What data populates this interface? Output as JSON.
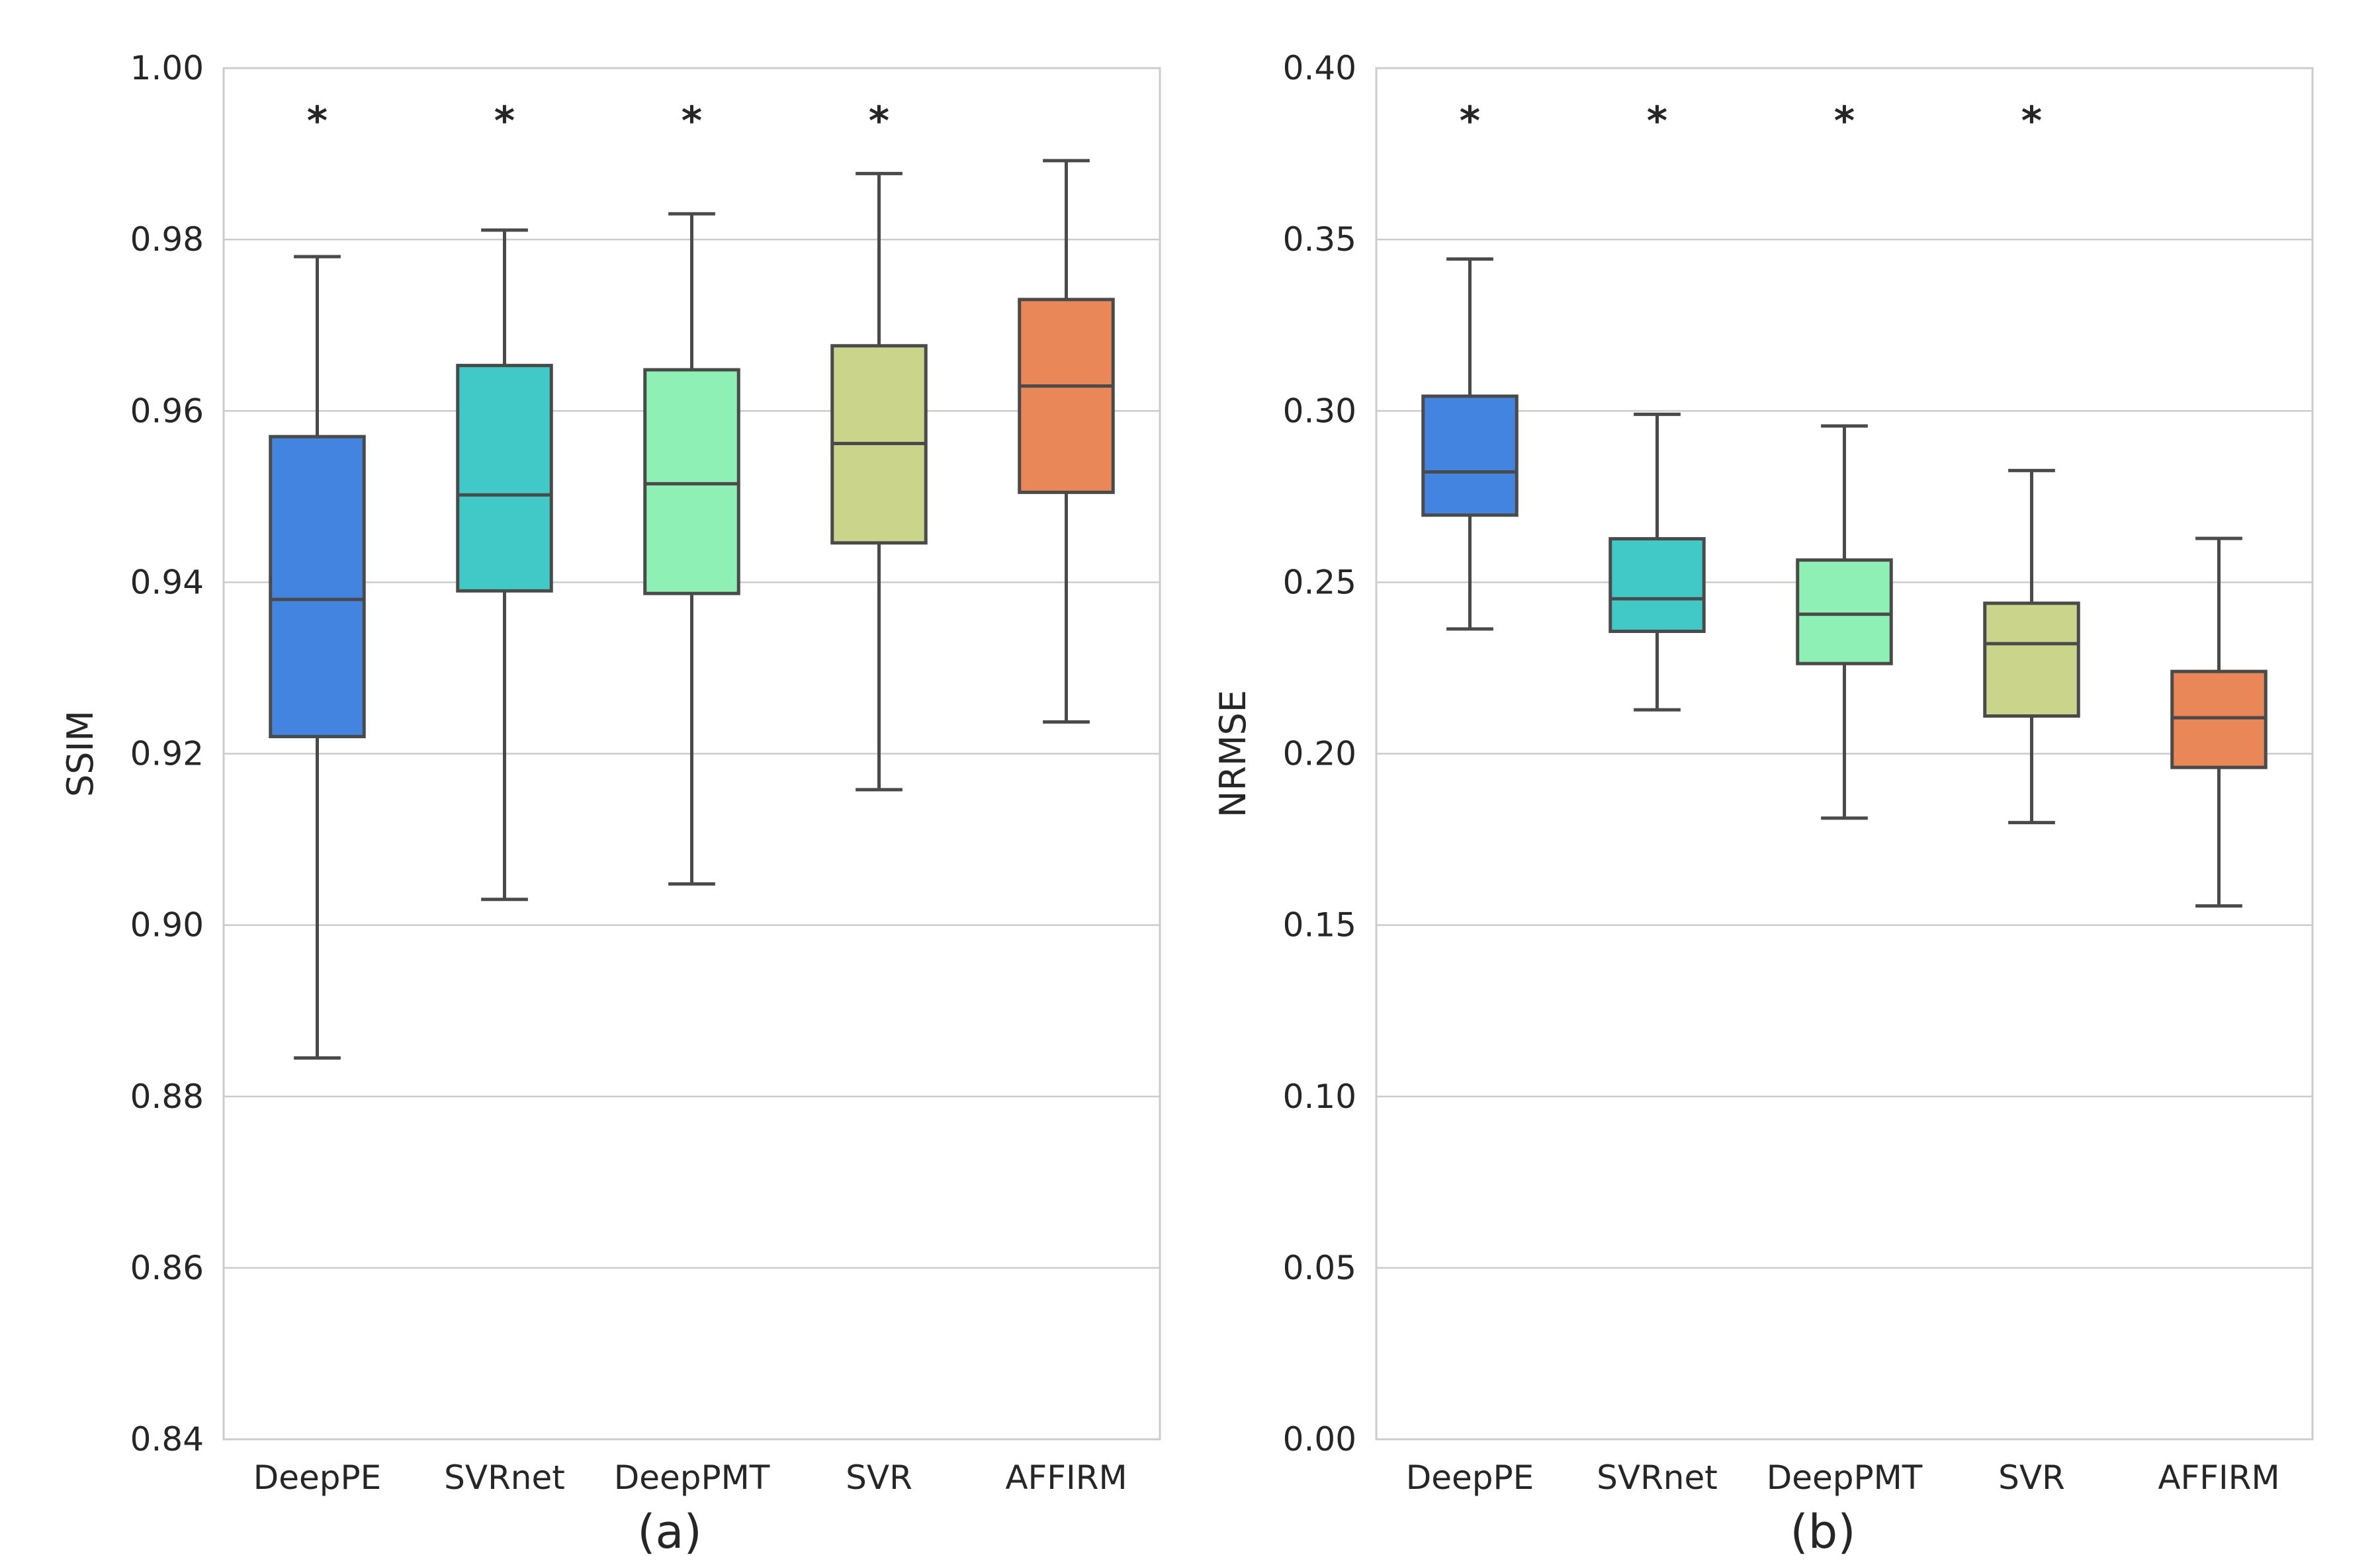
{
  "chart_data": [
    {
      "type": "box",
      "panel_label": "(a)",
      "ylabel": "SSIM",
      "xlabel": "",
      "ylim": [
        0.84,
        1.0
      ],
      "yticks": [
        "0.84",
        "0.86",
        "0.88",
        "0.90",
        "0.92",
        "0.94",
        "0.96",
        "0.98",
        "1.00"
      ],
      "ytick_values": [
        0.84,
        0.86,
        0.88,
        0.9,
        0.92,
        0.94,
        0.96,
        0.98,
        1.0
      ],
      "grid": true,
      "categories": [
        "DeepPE",
        "SVRnet",
        "DeepPMT",
        "SVR",
        "AFFIRM"
      ],
      "boxes": [
        {
          "name": "DeepPE",
          "whisker_low": 0.8845,
          "q1": 0.922,
          "median": 0.938,
          "q3": 0.957,
          "whisker_high": 0.978,
          "marker": "*",
          "color": "#4384e0"
        },
        {
          "name": "SVRnet",
          "whisker_low": 0.903,
          "q1": 0.939,
          "median": 0.9502,
          "q3": 0.9653,
          "whisker_high": 0.9811,
          "marker": "*",
          "color": "#40c9c6"
        },
        {
          "name": "DeepPMT",
          "whisker_low": 0.9048,
          "q1": 0.9387,
          "median": 0.9515,
          "q3": 0.9648,
          "whisker_high": 0.983,
          "marker": "*",
          "color": "#8ef0b4"
        },
        {
          "name": "SVR",
          "whisker_low": 0.9158,
          "q1": 0.9446,
          "median": 0.9562,
          "q3": 0.9676,
          "whisker_high": 0.9877,
          "marker": "*",
          "color": "#cbd48b"
        },
        {
          "name": "AFFIRM",
          "whisker_low": 0.9237,
          "q1": 0.9505,
          "median": 0.9629,
          "q3": 0.973,
          "whisker_high": 0.9892,
          "marker": "",
          "color": "#e98758"
        }
      ]
    },
    {
      "type": "box",
      "panel_label": "(b)",
      "ylabel": "NRMSE",
      "xlabel": "",
      "ylim": [
        0.0,
        0.4
      ],
      "yticks": [
        "0.00",
        "0.05",
        "0.10",
        "0.15",
        "0.20",
        "0.25",
        "0.30",
        "0.35",
        "0.40"
      ],
      "ytick_values": [
        0.0,
        0.05,
        0.1,
        0.15,
        0.2,
        0.25,
        0.3,
        0.35,
        0.4
      ],
      "grid": true,
      "categories": [
        "DeepPE",
        "SVRnet",
        "DeepPMT",
        "SVR",
        "AFFIRM"
      ],
      "boxes": [
        {
          "name": "DeepPE",
          "whisker_low": 0.2364,
          "q1": 0.2696,
          "median": 0.2822,
          "q3": 0.3043,
          "whisker_high": 0.3443,
          "marker": "*",
          "color": "#4384e0"
        },
        {
          "name": "SVRnet",
          "whisker_low": 0.2128,
          "q1": 0.2357,
          "median": 0.2452,
          "q3": 0.2627,
          "whisker_high": 0.299,
          "marker": "*",
          "color": "#40c9c6"
        },
        {
          "name": "DeepPMT",
          "whisker_low": 0.1812,
          "q1": 0.2263,
          "median": 0.2407,
          "q3": 0.2565,
          "whisker_high": 0.2956,
          "marker": "*",
          "color": "#8ef0b4"
        },
        {
          "name": "SVR",
          "whisker_low": 0.1799,
          "q1": 0.211,
          "median": 0.2321,
          "q3": 0.2439,
          "whisker_high": 0.2826,
          "marker": "*",
          "color": "#cbd48b"
        },
        {
          "name": "AFFIRM",
          "whisker_low": 0.1556,
          "q1": 0.196,
          "median": 0.2105,
          "q3": 0.224,
          "whisker_high": 0.2628,
          "marker": "",
          "color": "#e98758"
        }
      ]
    }
  ]
}
